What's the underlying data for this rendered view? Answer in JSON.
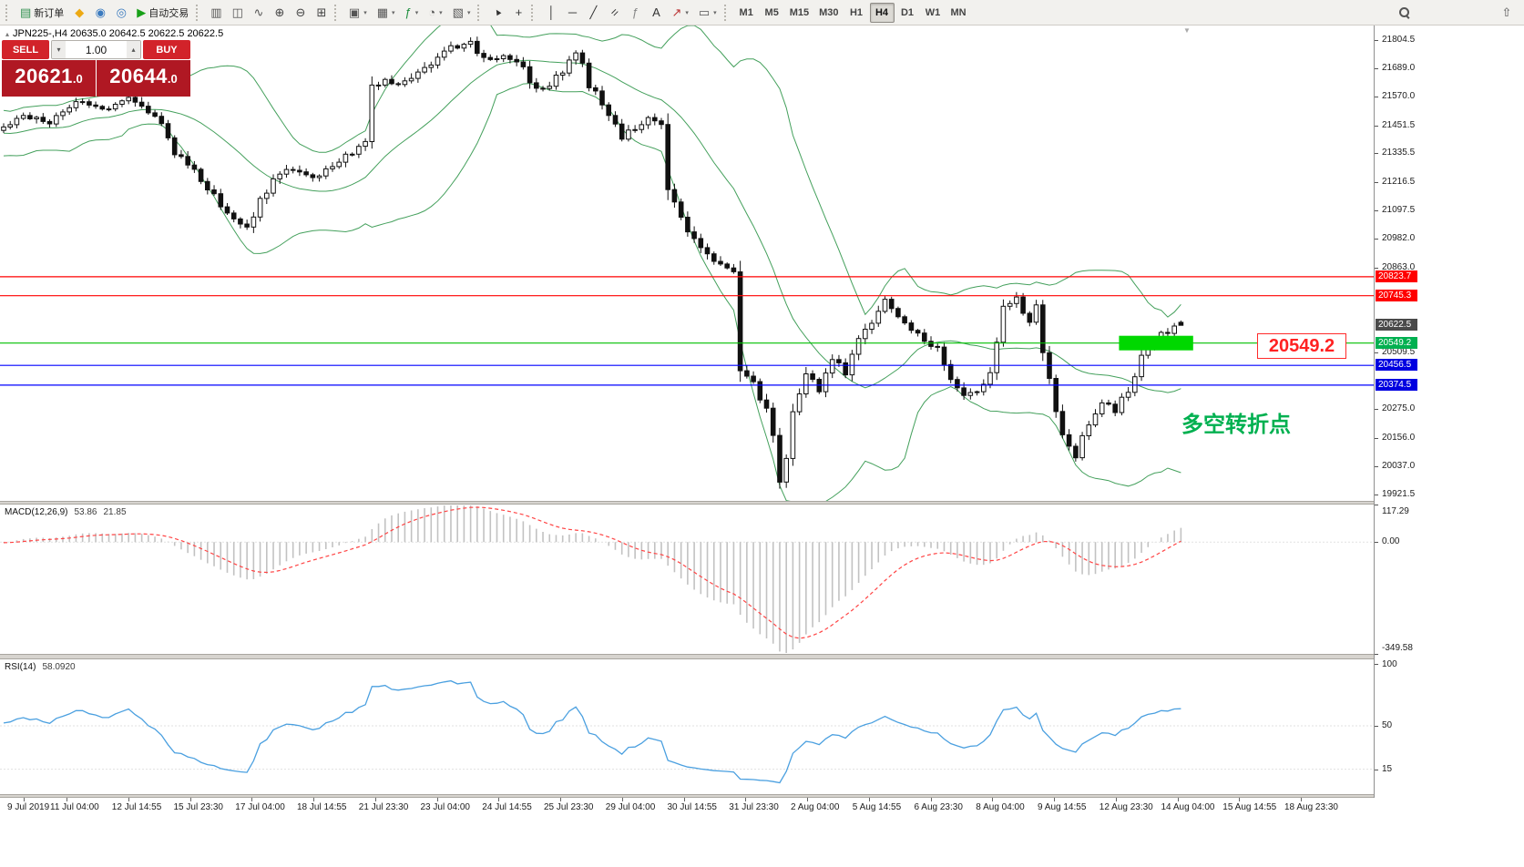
{
  "toolbar": {
    "groups": [
      {
        "items": [
          {
            "name": "new-order",
            "glyph": "▤",
            "color": "#2e8f4e",
            "label": "新订单"
          },
          {
            "name": "metaeditor",
            "glyph": "◆",
            "color": "#eda913"
          },
          {
            "name": "market-watch",
            "glyph": "◉",
            "color": "#3a7abf"
          },
          {
            "name": "navigator",
            "glyph": "◎",
            "color": "#3a7abf"
          },
          {
            "name": "autotrading",
            "glyph": "▶",
            "color": "#18a018",
            "label": "自动交易"
          }
        ]
      },
      {
        "items": [
          {
            "name": "bar-chart",
            "glyph": "▥",
            "color": "#555555"
          },
          {
            "name": "candlestick-chart",
            "glyph": "◫",
            "color": "#555555"
          },
          {
            "name": "line-chart",
            "glyph": "∿",
            "color": "#555555"
          },
          {
            "name": "zoom-in",
            "glyph": "⊕",
            "color": "#444444"
          },
          {
            "name": "zoom-out",
            "glyph": "⊖",
            "color": "#444444"
          },
          {
            "name": "tile-windows",
            "glyph": "⊞",
            "color": "#444444"
          }
        ]
      },
      {
        "items": [
          {
            "name": "new-chart",
            "glyph": "▣",
            "color": "#555555",
            "dd": true
          },
          {
            "name": "chart-profiles",
            "glyph": "▦",
            "color": "#555555",
            "dd": true
          },
          {
            "name": "indicators",
            "glyph": "ƒ",
            "color": "#1e8e3e",
            "dd": true
          },
          {
            "name": "periods",
            "glyph": "◔",
            "color": "#555555",
            "dd": true
          },
          {
            "name": "templates",
            "glyph": "▧",
            "color": "#555555",
            "dd": true
          }
        ]
      },
      {
        "items": [
          {
            "name": "cursor",
            "glyph": "▲",
            "color": "#333333",
            "cls": "rot-cursor"
          },
          {
            "name": "crosshair",
            "glyph": "+",
            "color": "#333333"
          }
        ]
      },
      {
        "items": [
          {
            "name": "vertical-line",
            "glyph": "│",
            "color": "#333333"
          },
          {
            "name": "horizontal-line",
            "glyph": "─",
            "color": "#333333"
          },
          {
            "name": "trendline",
            "glyph": "╱",
            "color": "#333333"
          },
          {
            "name": "equidistant-channel",
            "glyph": "=",
            "color": "#333333",
            "cls": "rot45"
          },
          {
            "name": "fibonacci",
            "glyph": "ƒ",
            "color": "#888888"
          },
          {
            "name": "text-label",
            "glyph": "A",
            "color": "#333333"
          },
          {
            "name": "arrows",
            "glyph": "↗",
            "color": "#bb3333",
            "dd": true
          },
          {
            "name": "shapes",
            "glyph": "▭",
            "color": "#555555",
            "dd": true
          }
        ]
      }
    ],
    "timeframes": [
      "M1",
      "M5",
      "M15",
      "M30",
      "H1",
      "H4",
      "D1",
      "W1",
      "MN"
    ],
    "active_timeframe": "H4",
    "right_icons": [
      {
        "name": "search",
        "mag": true
      },
      {
        "name": "toolbar-expand",
        "glyph": "⇧",
        "color": "#555555"
      }
    ]
  },
  "chart": {
    "collapse_marker": "▴",
    "shift_marker": "▼",
    "symbol_info": "JPN225-,H4  20635.0 20642.5 20622.5 20622.5",
    "quick_trade": {
      "sell_label": "SELL",
      "buy_label": "BUY",
      "volume": "1.00",
      "vol_down_icon": "▾",
      "vol_up_icon": "▴",
      "sell_price": "20621.0",
      "buy_price": "20644.0"
    },
    "annotations": {
      "price_label": "20549.2",
      "turning_point": "多空转折点",
      "turning_point_color": "#00b050"
    }
  },
  "macd_panel": {
    "name": "MACD(12,26,9)",
    "value": "53.86",
    "signal": "21.85",
    "axis_max": "117.29",
    "axis_zero": "0.00",
    "axis_min": "-349.58"
  },
  "rsi_panel": {
    "name": "RSI(14)",
    "value": "58.0920",
    "axis_labels": [
      "100",
      "50",
      "15"
    ]
  },
  "chart_data": {
    "type": "candlestick",
    "symbol": "JPN225-",
    "period": "H4",
    "current_ohlc": {
      "open": 20635.0,
      "high": 20642.5,
      "low": 20622.5,
      "close": 20622.5
    },
    "last_price": 20622.5,
    "price_range": {
      "max": 21865,
      "min": 19895
    },
    "candle_count": 180,
    "price_path_anchors": [
      [
        0,
        21430
      ],
      [
        4,
        21490
      ],
      [
        8,
        21460
      ],
      [
        12,
        21550
      ],
      [
        16,
        21520
      ],
      [
        20,
        21560
      ],
      [
        24,
        21500
      ],
      [
        27,
        21340
      ],
      [
        30,
        21260
      ],
      [
        33,
        21160
      ],
      [
        36,
        21050
      ],
      [
        38,
        21020
      ],
      [
        40,
        21140
      ],
      [
        42,
        21230
      ],
      [
        45,
        21270
      ],
      [
        48,
        21230
      ],
      [
        51,
        21280
      ],
      [
        54,
        21340
      ],
      [
        56,
        21390
      ],
      [
        57,
        21610
      ],
      [
        59,
        21650
      ],
      [
        61,
        21610
      ],
      [
        63,
        21640
      ],
      [
        66,
        21710
      ],
      [
        69,
        21770
      ],
      [
        72,
        21795
      ],
      [
        74,
        21720
      ],
      [
        77,
        21740
      ],
      [
        80,
        21690
      ],
      [
        82,
        21590
      ],
      [
        84,
        21620
      ],
      [
        87,
        21710
      ],
      [
        88,
        21760
      ],
      [
        90,
        21620
      ],
      [
        93,
        21500
      ],
      [
        95,
        21400
      ],
      [
        97,
        21440
      ],
      [
        99,
        21480
      ],
      [
        101,
        21450
      ],
      [
        102,
        21180
      ],
      [
        104,
        21060
      ],
      [
        106,
        20980
      ],
      [
        108,
        20910
      ],
      [
        110,
        20880
      ],
      [
        112,
        20850
      ],
      [
        113,
        20460
      ],
      [
        115,
        20390
      ],
      [
        117,
        20260
      ],
      [
        118,
        20160
      ],
      [
        119,
        19990
      ],
      [
        120,
        20070
      ],
      [
        121,
        20260
      ],
      [
        123,
        20430
      ],
      [
        125,
        20360
      ],
      [
        127,
        20500
      ],
      [
        129,
        20420
      ],
      [
        131,
        20560
      ],
      [
        133,
        20640
      ],
      [
        135,
        20720
      ],
      [
        137,
        20660
      ],
      [
        139,
        20600
      ],
      [
        141,
        20560
      ],
      [
        143,
        20520
      ],
      [
        145,
        20400
      ],
      [
        147,
        20330
      ],
      [
        149,
        20340
      ],
      [
        151,
        20430
      ],
      [
        153,
        20680
      ],
      [
        155,
        20730
      ],
      [
        157,
        20640
      ],
      [
        158,
        20690
      ],
      [
        160,
        20380
      ],
      [
        162,
        20170
      ],
      [
        164,
        20090
      ],
      [
        166,
        20230
      ],
      [
        168,
        20300
      ],
      [
        170,
        20270
      ],
      [
        172,
        20360
      ],
      [
        174,
        20480
      ],
      [
        176,
        20560
      ],
      [
        178,
        20600
      ],
      [
        180,
        20622.5
      ]
    ],
    "horizontal_levels": [
      {
        "price": 20823.7,
        "label": "20823.7",
        "color": "#ff0000",
        "tag_bg": "#ff0000",
        "type": "resistance"
      },
      {
        "price": 20745.3,
        "label": "20745.3",
        "color": "#ff0000",
        "tag_bg": "#ff0000",
        "type": "resistance"
      },
      {
        "price": 20549.2,
        "label": "20549.2",
        "color": "#00c000",
        "tag_bg": "#00b050",
        "type": "pivot"
      },
      {
        "price": 20456.5,
        "label": "20456.5",
        "color": "#0000ff",
        "tag_bg": "#0000e0",
        "type": "support"
      },
      {
        "price": 20374.5,
        "label": "20374.5",
        "color": "#0000ff",
        "tag_bg": "#0000e0",
        "type": "support"
      }
    ],
    "last_price_tag": {
      "label": "20622.5",
      "color": "#4a4a4a"
    },
    "plain_axis_labels": [
      21804.5,
      21689.0,
      21570.0,
      21451.5,
      21335.5,
      21216.5,
      21097.5,
      20982.0,
      20863.0,
      20509.5,
      20275.0,
      20156.0,
      20037.0,
      19921.5
    ],
    "highlight_zone": {
      "price": 20549.2,
      "from_candle": 170,
      "to_candle": 181,
      "color": "#00d800"
    },
    "indicators": {
      "bollinger": {
        "period": 20,
        "deviation": 2,
        "color": "#44a05c"
      },
      "macd": {
        "fast": 12,
        "slow": 26,
        "signal_period": 9,
        "axis_max": 117.29,
        "axis_min": -349.58,
        "histogram_color": "#c2c2c2",
        "signal_color": "#ff4444"
      },
      "rsi": {
        "period": 14,
        "color": "#4ba0e0",
        "levels": [
          50,
          15
        ]
      }
    },
    "time_labels": [
      "9 Jul 2019",
      "11 Jul 04:00",
      "12 Jul 14:55",
      "15 Jul 23:30",
      "17 Jul 04:00",
      "18 Jul 14:55",
      "21 Jul 23:30",
      "23 Jul 04:00",
      "24 Jul 14:55",
      "25 Jul 23:30",
      "29 Jul 04:00",
      "30 Jul 14:55",
      "31 Jul 23:30",
      "2 Aug 04:00",
      "5 Aug 14:55",
      "6 Aug 23:30",
      "8 Aug 04:00",
      "9 Aug 14:55",
      "12 Aug 23:30",
      "14 Aug 04:00",
      "15 Aug 14:55",
      "18 Aug 23:30"
    ]
  }
}
